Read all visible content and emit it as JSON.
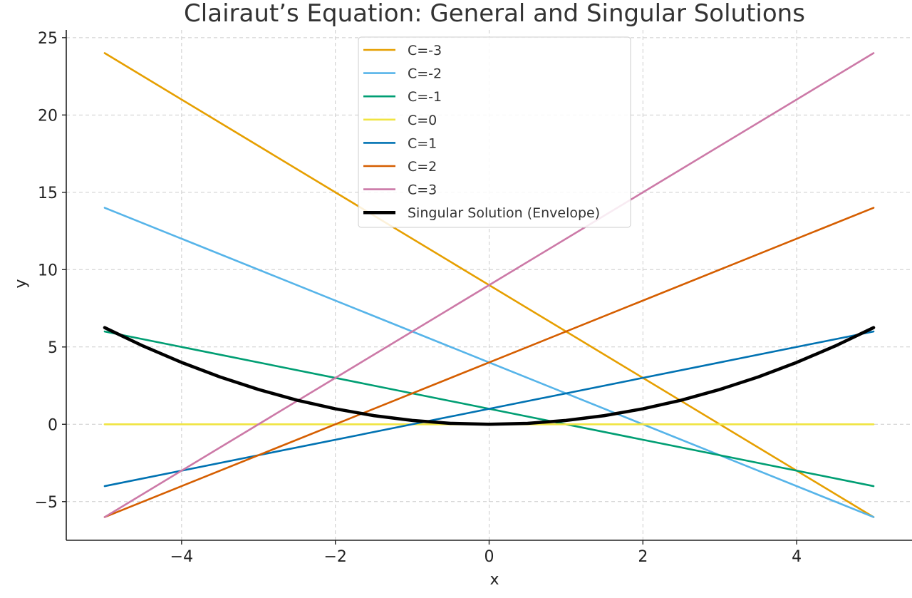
{
  "chart_data": {
    "type": "line",
    "title": "Clairaut’s Equation: General and Singular Solutions",
    "xlabel": "x",
    "ylabel": "y",
    "xlim": [
      -5.5,
      5.5
    ],
    "ylim": [
      -7.5,
      25.5
    ],
    "xticks": [
      -4,
      -2,
      0,
      2,
      4
    ],
    "yticks": [
      -5,
      0,
      5,
      10,
      15,
      20,
      25
    ],
    "grid": true,
    "legend_position": "top-center",
    "series": [
      {
        "name": "C=-3",
        "color": "#E69F00",
        "x": [
          -5,
          5
        ],
        "y": [
          24,
          -6
        ]
      },
      {
        "name": "C=-2",
        "color": "#56B4E9",
        "x": [
          -5,
          5
        ],
        "y": [
          14,
          -6
        ]
      },
      {
        "name": "C=-1",
        "color": "#009E73",
        "x": [
          -5,
          5
        ],
        "y": [
          6,
          -4
        ]
      },
      {
        "name": "C=0",
        "color": "#F0E442",
        "x": [
          -5,
          5
        ],
        "y": [
          0,
          0
        ]
      },
      {
        "name": "C=1",
        "color": "#0072B2",
        "x": [
          -5,
          5
        ],
        "y": [
          -4,
          6
        ]
      },
      {
        "name": "C=2",
        "color": "#D55E00",
        "x": [
          -5,
          5
        ],
        "y": [
          -6,
          14
        ]
      },
      {
        "name": "C=3",
        "color": "#CC79A7",
        "x": [
          -5,
          5
        ],
        "y": [
          -6,
          24
        ]
      },
      {
        "name": "Singular Solution (Envelope)",
        "color": "#000000",
        "thick": true,
        "x": [
          -5,
          -4.5,
          -4,
          -3.5,
          -3,
          -2.5,
          -2,
          -1.5,
          -1,
          -0.5,
          0,
          0.5,
          1,
          1.5,
          2,
          2.5,
          3,
          3.5,
          4,
          4.5,
          5
        ],
        "y": [
          6.25,
          5.06,
          4,
          3.06,
          2.25,
          1.56,
          1,
          0.56,
          0.25,
          0.06,
          0,
          0.06,
          0.25,
          0.56,
          1,
          1.56,
          2.25,
          3.06,
          4,
          5.06,
          6.25
        ]
      }
    ]
  }
}
